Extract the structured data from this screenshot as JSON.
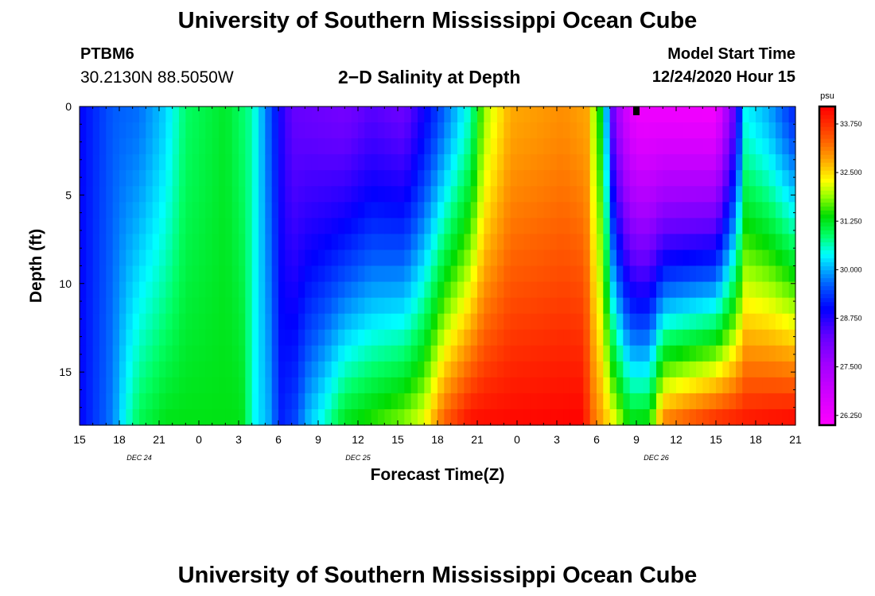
{
  "header": {
    "title_top": "University of Southern Mississippi Ocean Cube",
    "title_bottom": "University of Southern Mississippi Ocean Cube",
    "station": "PTBM6",
    "coordinates": "30.2130N 88.5050W",
    "subtitle": "2−D Salinity at Depth",
    "model_start_label": "Model Start Time",
    "model_start_value": "12/24/2020 Hour 15"
  },
  "chart_data": {
    "type": "heatmap",
    "title": "2−D Salinity at Depth",
    "xlabel": "Forecast Time(Z)",
    "ylabel": "Depth (ft)",
    "x_tick_labels": [
      "15",
      "18",
      "21",
      "0",
      "3",
      "6",
      "9",
      "12",
      "15",
      "18",
      "21",
      "0",
      "3",
      "6",
      "9",
      "12",
      "15",
      "18",
      "21"
    ],
    "x_range_hours": [
      0,
      54
    ],
    "date_labels": [
      {
        "text": "DEC 24",
        "hour": 4.5
      },
      {
        "text": "DEC 25",
        "hour": 21
      },
      {
        "text": "DEC 26",
        "hour": 43.5
      }
    ],
    "y_ticks": [
      0,
      5,
      10,
      15
    ],
    "y_range": [
      0,
      18
    ],
    "y_inverted": true,
    "colorbar": {
      "unit": "psu",
      "tick_labels": [
        "26.250",
        "27.500",
        "28.750",
        "30.000",
        "31.250",
        "32.500",
        "33.750"
      ],
      "min": 26.0,
      "max": 34.2,
      "stops": [
        {
          "v": 26.0,
          "c": "#ff00ff"
        },
        {
          "v": 26.8,
          "c": "#d200ff"
        },
        {
          "v": 27.6,
          "c": "#a000ff"
        },
        {
          "v": 28.3,
          "c": "#6400ff"
        },
        {
          "v": 29.0,
          "c": "#0000ff"
        },
        {
          "v": 29.6,
          "c": "#005aff"
        },
        {
          "v": 30.0,
          "c": "#00aaff"
        },
        {
          "v": 30.4,
          "c": "#00ffff"
        },
        {
          "v": 30.9,
          "c": "#00ff64"
        },
        {
          "v": 31.4,
          "c": "#00dc00"
        },
        {
          "v": 31.9,
          "c": "#96ff00"
        },
        {
          "v": 32.3,
          "c": "#ffff00"
        },
        {
          "v": 32.8,
          "c": "#ffaa00"
        },
        {
          "v": 33.3,
          "c": "#ff6400"
        },
        {
          "v": 33.8,
          "c": "#ff2800"
        },
        {
          "v": 34.2,
          "c": "#ff0000"
        }
      ]
    },
    "current_time_marker_hour": 42,
    "field": {
      "description_hours": [
        0,
        54
      ],
      "top_profile": [
        [
          0,
          29.0
        ],
        [
          2.5,
          29.6
        ],
        [
          4.5,
          29.7
        ],
        [
          6.5,
          30.2
        ],
        [
          8,
          30.9
        ],
        [
          11,
          31.2
        ],
        [
          13,
          30.7
        ],
        [
          14.3,
          29.6
        ],
        [
          15.2,
          28.8
        ],
        [
          16,
          28.3
        ],
        [
          20,
          28.1
        ],
        [
          22,
          28.4
        ],
        [
          24.5,
          28.2
        ],
        [
          29.5,
          30.6
        ],
        [
          30.5,
          31.9
        ],
        [
          32.5,
          32.8
        ],
        [
          36.5,
          33.0
        ],
        [
          38.5,
          32.8
        ],
        [
          39,
          31.3
        ],
        [
          39.5,
          31.5
        ],
        [
          40,
          28.6
        ],
        [
          41,
          27.0
        ],
        [
          42,
          26.3
        ],
        [
          48,
          26.2
        ],
        [
          49.5,
          28.5
        ],
        [
          50.2,
          30.4
        ],
        [
          52,
          30.0
        ],
        [
          53,
          29.6
        ],
        [
          54,
          29.2
        ]
      ],
      "bottom_profile": [
        [
          0,
          29.0
        ],
        [
          2.5,
          29.8
        ],
        [
          3.5,
          30.5
        ],
        [
          4.5,
          31.0
        ],
        [
          6.5,
          31.3
        ],
        [
          10,
          31.3
        ],
        [
          12.2,
          31.3
        ],
        [
          13.2,
          30.4
        ],
        [
          14.3,
          30.0
        ],
        [
          15.2,
          29.2
        ],
        [
          16.3,
          29.5
        ],
        [
          17.2,
          30.1
        ],
        [
          18.5,
          30.6
        ],
        [
          20,
          31.3
        ],
        [
          24.5,
          31.9
        ],
        [
          26,
          32.3
        ],
        [
          27.5,
          33.4
        ],
        [
          29.5,
          34.1
        ],
        [
          38,
          34.2
        ],
        [
          38.5,
          33.4
        ],
        [
          39.5,
          32.8
        ],
        [
          40.5,
          32.2
        ],
        [
          41.5,
          31.4
        ],
        [
          43,
          31.5
        ],
        [
          44,
          33.2
        ],
        [
          48,
          33.9
        ],
        [
          54,
          34.2
        ]
      ]
    }
  }
}
